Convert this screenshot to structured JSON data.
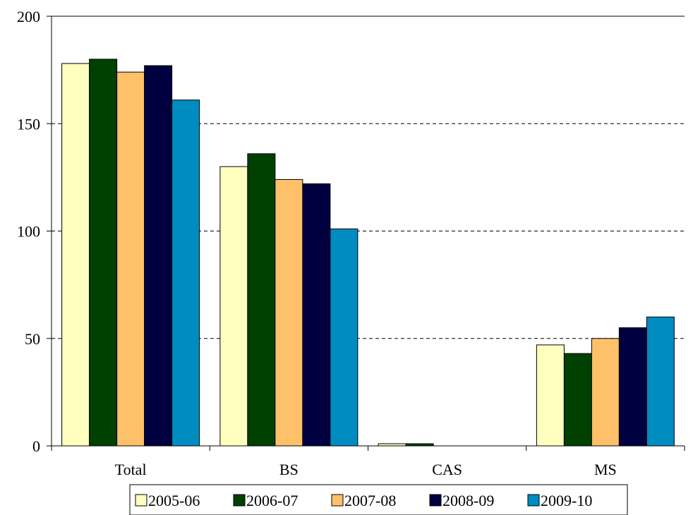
{
  "chart_data": {
    "type": "bar",
    "title": "",
    "xlabel": "",
    "ylabel": "",
    "categories": [
      "Total",
      "BS",
      "CAS",
      "MS"
    ],
    "series": [
      {
        "name": "2005-06",
        "color": "#FFFFC0",
        "values": [
          178,
          130,
          1,
          47
        ]
      },
      {
        "name": "2006-07",
        "color": "#004000",
        "values": [
          180,
          136,
          1,
          43
        ]
      },
      {
        "name": "2007-08",
        "color": "#FFC06A",
        "values": [
          174,
          124,
          0,
          50
        ]
      },
      {
        "name": "2008-09",
        "color": "#000040",
        "values": [
          177,
          122,
          0,
          55
        ]
      },
      {
        "name": "2009-10",
        "color": "#008CC0",
        "values": [
          161,
          101,
          0,
          60
        ]
      }
    ],
    "ylim": [
      0,
      200
    ],
    "yticks": [
      0,
      50,
      100,
      150,
      200
    ],
    "ytick_labels": [
      "0",
      "50",
      "100",
      "150",
      "200"
    ],
    "grid": "dashed horizontal",
    "legend_position": "bottom"
  }
}
